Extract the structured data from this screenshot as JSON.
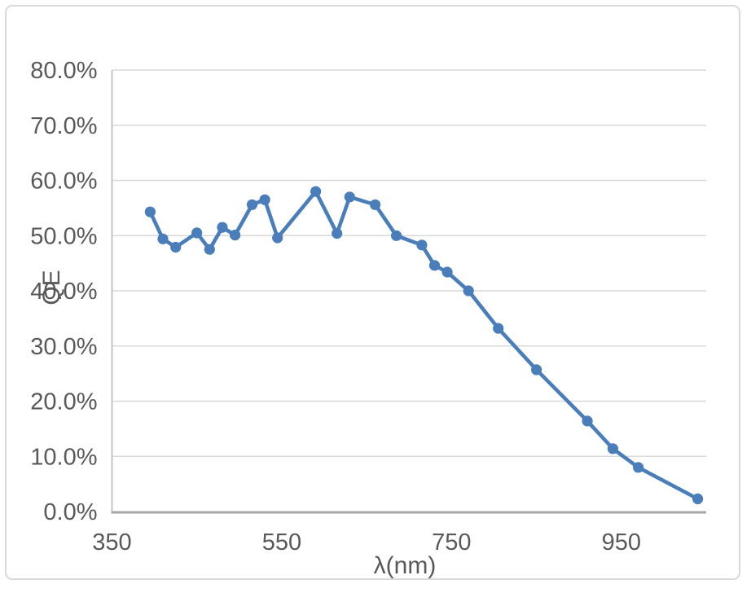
{
  "chart_data": {
    "type": "line",
    "title": "",
    "xlabel": "λ(nm)",
    "ylabel": "QE",
    "xlim": [
      350,
      1050
    ],
    "ylim": [
      0,
      0.8
    ],
    "grid": true,
    "legend_position": "none",
    "x_ticks": [
      {
        "label": "350",
        "value": 350
      },
      {
        "label": "550",
        "value": 550
      },
      {
        "label": "750",
        "value": 750
      },
      {
        "label": "950",
        "value": 950
      }
    ],
    "y_ticks": [
      {
        "label": "0.0%",
        "value": 0.0
      },
      {
        "label": "10.0%",
        "value": 0.1
      },
      {
        "label": "20.0%",
        "value": 0.2
      },
      {
        "label": "30.0%",
        "value": 0.3
      },
      {
        "label": "40.0%",
        "value": 0.4
      },
      {
        "label": "50.0%",
        "value": 0.5
      },
      {
        "label": "60.0%",
        "value": 0.6
      },
      {
        "label": "70.0%",
        "value": 0.7
      },
      {
        "label": "80.0%",
        "value": 0.8
      }
    ],
    "series": [
      {
        "name": "QE",
        "marker": "circle",
        "x": [
          395,
          410,
          425,
          450,
          465,
          480,
          495,
          515,
          530,
          545,
          590,
          615,
          630,
          660,
          685,
          715,
          730,
          745,
          770,
          805,
          850,
          910,
          940,
          970,
          1040
        ],
        "y": [
          0.543,
          0.494,
          0.479,
          0.505,
          0.475,
          0.515,
          0.501,
          0.556,
          0.565,
          0.496,
          0.58,
          0.504,
          0.57,
          0.556,
          0.5,
          0.483,
          0.446,
          0.434,
          0.4,
          0.332,
          0.257,
          0.164,
          0.114,
          0.08,
          0.023
        ]
      }
    ],
    "colors": {
      "line": "#4A7EBB",
      "marker": "#4A7EBB",
      "gridline": "#D9D9D9",
      "x_axis_line": "#A6A6A6",
      "y_axis_line": "#C4C4C4",
      "tick_text": "#595959",
      "chart_border": "#D9D9D9"
    }
  }
}
